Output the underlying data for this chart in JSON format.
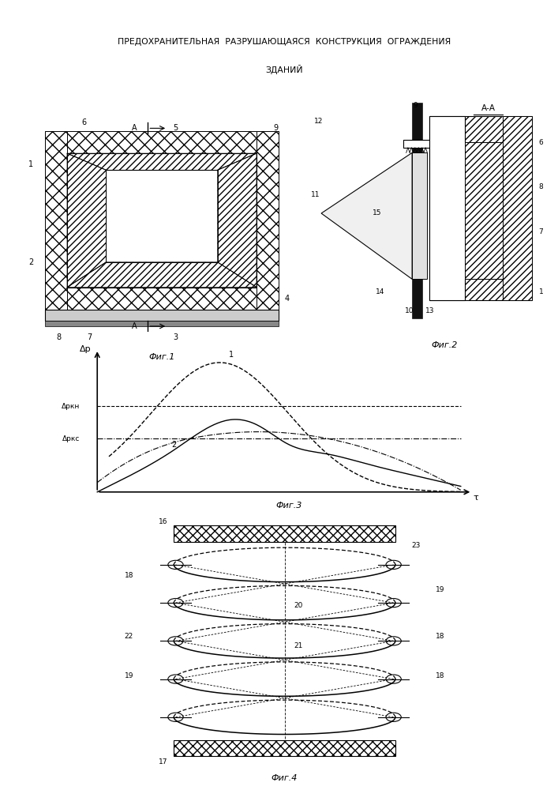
{
  "title_line1": "ПРЕДОХРАНИТЕЛЬНАЯ  РАЗРУШАЮЩАЯСЯ  КОНСТРУКЦИЯ  ОГРАЖДЕНИЯ  ЗДАНИЙ",
  "title_line2": "ЗДАНИЙ",
  "fig1_label": "Фиг.1",
  "fig2_label": "Фиг.2",
  "fig3_label": "Фиг.3",
  "fig4_label": "Фиг.4",
  "background": "#ffffff",
  "line_color": "#000000",
  "hatch_color": "#555555",
  "delta_p_kn_label": "Δpкн",
  "delta_p_ks_label": "Δpкс",
  "delta_p_label": "Δp",
  "tau_label": "τ"
}
